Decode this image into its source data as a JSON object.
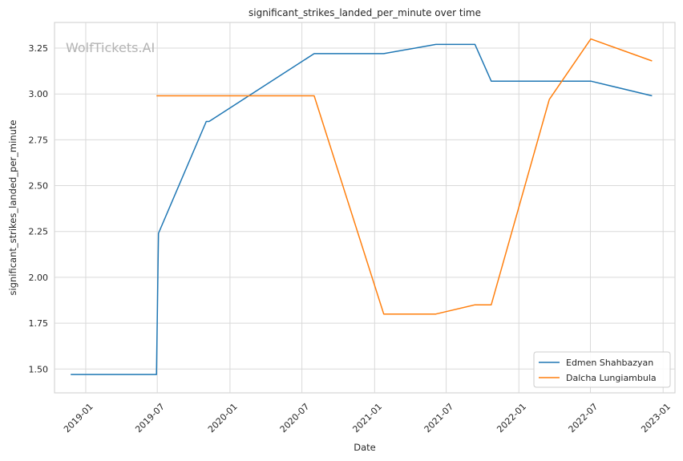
{
  "chart_data": {
    "type": "line",
    "title": "significant_strikes_landed_per_minute over time",
    "xlabel": "Date",
    "ylabel": "significant_strikes_landed_per_minute",
    "watermark": "WolfTickets.AI",
    "x_ticks": [
      "2019-01",
      "2019-07",
      "2020-01",
      "2020-07",
      "2021-01",
      "2021-07",
      "2022-01",
      "2022-07",
      "2023-01"
    ],
    "y_ticks": [
      "1.50",
      "1.75",
      "2.00",
      "2.25",
      "2.50",
      "2.75",
      "3.00",
      "3.25"
    ],
    "xlim": [
      "2018-10-14",
      "2023-01-31"
    ],
    "ylim": [
      1.37,
      3.39
    ],
    "grid": true,
    "legend_position": "lower-right",
    "series": [
      {
        "name": "Edmen Shahbazyan",
        "color": "#1f77b4",
        "points": [
          [
            "2018-11-24",
            1.47
          ],
          [
            "2019-06-29",
            1.47
          ],
          [
            "2019-07-04",
            2.24
          ],
          [
            "2019-11-02",
            2.85
          ],
          [
            "2019-11-09",
            2.85
          ],
          [
            "2020-08-01",
            3.22
          ],
          [
            "2021-01-24",
            3.22
          ],
          [
            "2021-06-05",
            3.27
          ],
          [
            "2021-09-12",
            3.27
          ],
          [
            "2021-10-23",
            3.07
          ],
          [
            "2022-07-02",
            3.07
          ],
          [
            "2022-12-04",
            2.99
          ]
        ]
      },
      {
        "name": "Dalcha Lungiambula",
        "color": "#ff7f0e",
        "points": [
          [
            "2019-06-29",
            2.99
          ],
          [
            "2020-08-01",
            2.99
          ],
          [
            "2021-01-24",
            1.8
          ],
          [
            "2021-06-05",
            1.8
          ],
          [
            "2021-09-12",
            1.85
          ],
          [
            "2021-10-23",
            1.85
          ],
          [
            "2022-03-19",
            2.97
          ],
          [
            "2022-07-02",
            3.3
          ],
          [
            "2022-12-04",
            3.18
          ]
        ]
      }
    ]
  }
}
